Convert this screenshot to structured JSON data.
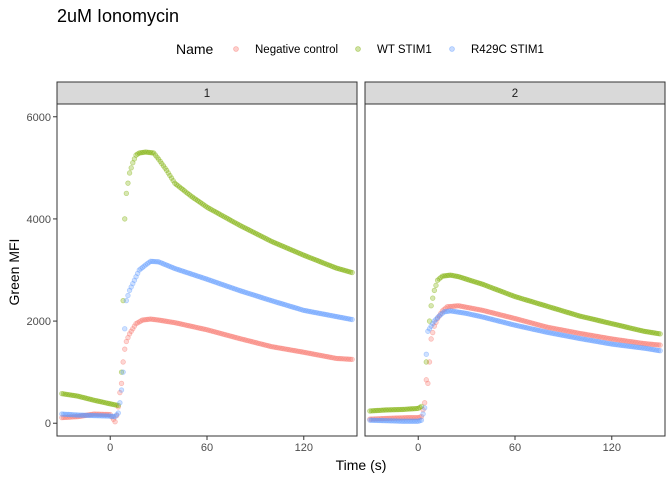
{
  "chart_data": {
    "type": "scatter",
    "title": "2uM Ionomycin",
    "xlabel": "Time (s)",
    "ylabel": "Green MFI",
    "legend": {
      "title": "Name",
      "position": "top"
    },
    "facets": [
      "1",
      "2"
    ],
    "xlim": [
      -33,
      153
    ],
    "ylim": [
      -250,
      6250
    ],
    "x_ticks": [
      0,
      60,
      120
    ],
    "y_ticks": [
      0,
      2000,
      4000,
      6000
    ],
    "series": [
      {
        "name": "Negative control",
        "color": "#F8766D",
        "panels": [
          [
            [
              -30,
              110
            ],
            [
              -20,
              130
            ],
            [
              -10,
              180
            ],
            [
              0,
              170
            ],
            [
              3,
              30
            ],
            [
              4,
              150
            ],
            [
              5,
              320
            ],
            [
              6,
              600
            ],
            [
              7,
              780
            ],
            [
              8,
              1200
            ],
            [
              9,
              1450
            ],
            [
              10,
              1600
            ],
            [
              12,
              1750
            ],
            [
              14,
              1850
            ],
            [
              16,
              1950
            ],
            [
              20,
              2020
            ],
            [
              25,
              2040
            ],
            [
              30,
              2020
            ],
            [
              40,
              1970
            ],
            [
              60,
              1830
            ],
            [
              80,
              1660
            ],
            [
              100,
              1500
            ],
            [
              120,
              1390
            ],
            [
              140,
              1270
            ],
            [
              150,
              1250
            ]
          ],
          [
            [
              -30,
              80
            ],
            [
              -15,
              100
            ],
            [
              -5,
              110
            ],
            [
              0,
              110
            ],
            [
              2,
              130
            ],
            [
              4,
              400
            ],
            [
              5,
              850
            ],
            [
              6,
              780
            ],
            [
              7,
              1200
            ],
            [
              8,
              1650
            ],
            [
              10,
              1900
            ],
            [
              12,
              2050
            ],
            [
              15,
              2200
            ],
            [
              18,
              2280
            ],
            [
              25,
              2300
            ],
            [
              40,
              2210
            ],
            [
              60,
              2050
            ],
            [
              80,
              1880
            ],
            [
              100,
              1760
            ],
            [
              120,
              1650
            ],
            [
              140,
              1560
            ],
            [
              150,
              1530
            ]
          ]
        ]
      },
      {
        "name": "WT STIM1",
        "color": "#7CAE00",
        "panels": [
          [
            [
              -30,
              580
            ],
            [
              -20,
              530
            ],
            [
              -10,
              450
            ],
            [
              0,
              380
            ],
            [
              3,
              360
            ],
            [
              5,
              350
            ],
            [
              7,
              1000
            ],
            [
              8,
              2400
            ],
            [
              9,
              4000
            ],
            [
              10,
              4500
            ],
            [
              11,
              4700
            ],
            [
              12,
              4900
            ],
            [
              14,
              5100
            ],
            [
              16,
              5250
            ],
            [
              18,
              5290
            ],
            [
              22,
              5310
            ],
            [
              27,
              5290
            ],
            [
              30,
              5170
            ],
            [
              35,
              4950
            ],
            [
              40,
              4700
            ],
            [
              50,
              4450
            ],
            [
              60,
              4230
            ],
            [
              80,
              3880
            ],
            [
              100,
              3560
            ],
            [
              120,
              3290
            ],
            [
              140,
              3040
            ],
            [
              150,
              2950
            ]
          ],
          [
            [
              -30,
              240
            ],
            [
              -20,
              260
            ],
            [
              -10,
              270
            ],
            [
              0,
              290
            ],
            [
              2,
              330
            ],
            [
              5,
              1200
            ],
            [
              7,
              2000
            ],
            [
              8,
              2300
            ],
            [
              10,
              2600
            ],
            [
              12,
              2800
            ],
            [
              15,
              2880
            ],
            [
              20,
              2900
            ],
            [
              25,
              2870
            ],
            [
              40,
              2720
            ],
            [
              60,
              2480
            ],
            [
              80,
              2290
            ],
            [
              100,
              2100
            ],
            [
              120,
              1950
            ],
            [
              140,
              1800
            ],
            [
              150,
              1750
            ]
          ]
        ]
      },
      {
        "name": "R429C STIM1",
        "color": "#619CFF",
        "panels": [
          [
            [
              -30,
              180
            ],
            [
              -20,
              160
            ],
            [
              -10,
              150
            ],
            [
              0,
              140
            ],
            [
              3,
              130
            ],
            [
              5,
              200
            ],
            [
              6,
              400
            ],
            [
              7,
              650
            ],
            [
              8,
              1000
            ],
            [
              9,
              1850
            ],
            [
              10,
              2400
            ],
            [
              12,
              2600
            ],
            [
              15,
              2800
            ],
            [
              18,
              3000
            ],
            [
              22,
              3100
            ],
            [
              25,
              3170
            ],
            [
              30,
              3160
            ],
            [
              40,
              3030
            ],
            [
              60,
              2820
            ],
            [
              80,
              2600
            ],
            [
              100,
              2400
            ],
            [
              120,
              2210
            ],
            [
              140,
              2090
            ],
            [
              150,
              2030
            ]
          ],
          [
            [
              -30,
              60
            ],
            [
              -20,
              50
            ],
            [
              -10,
              40
            ],
            [
              0,
              40
            ],
            [
              2,
              60
            ],
            [
              4,
              300
            ],
            [
              5,
              1350
            ],
            [
              6,
              1800
            ],
            [
              8,
              1900
            ],
            [
              10,
              2000
            ],
            [
              13,
              2100
            ],
            [
              16,
              2180
            ],
            [
              20,
              2200
            ],
            [
              30,
              2150
            ],
            [
              40,
              2080
            ],
            [
              60,
              1920
            ],
            [
              80,
              1780
            ],
            [
              100,
              1660
            ],
            [
              120,
              1550
            ],
            [
              140,
              1470
            ],
            [
              150,
              1420
            ]
          ]
        ]
      }
    ]
  }
}
